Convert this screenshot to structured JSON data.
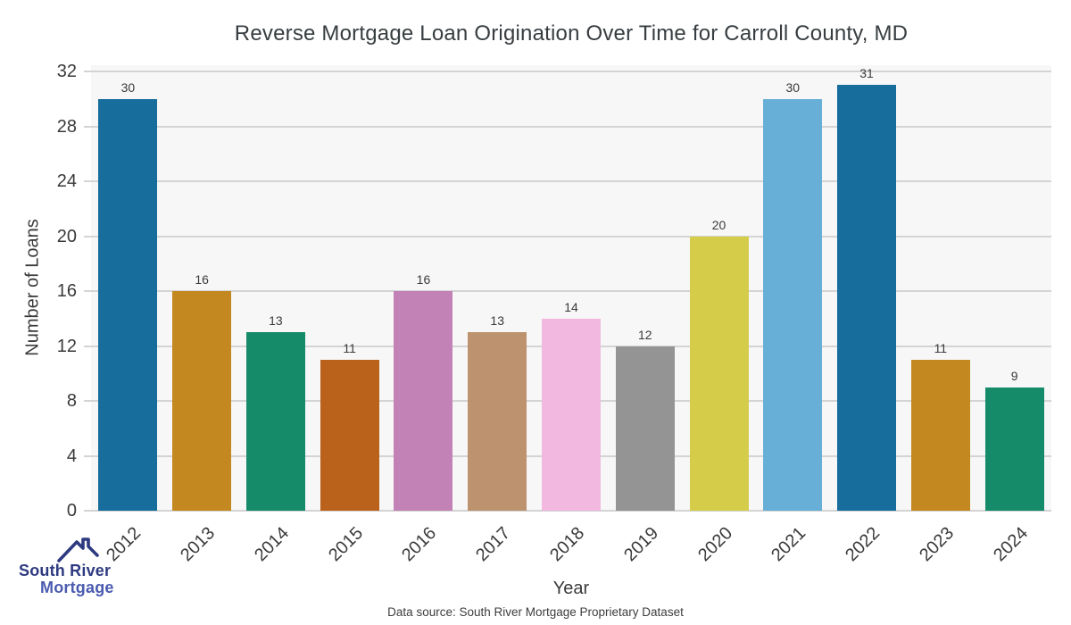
{
  "footer": {
    "source_note": "Data source: South River Mortgage Proprietary Dataset"
  },
  "logo": {
    "name": "South River Mortgage",
    "line1": "South River",
    "line2": "Mortgage",
    "colors": {
      "primary": "#2e3a80",
      "secondary": "#4a5ab0"
    }
  },
  "chart_data": {
    "type": "bar",
    "title": "Reverse Mortgage Loan Origination Over Time for Carroll County, MD",
    "xlabel": "Year",
    "ylabel": "Number of Loans",
    "categories": [
      "2012",
      "2013",
      "2014",
      "2015",
      "2016",
      "2017",
      "2018",
      "2019",
      "2020",
      "2021",
      "2022",
      "2023",
      "2024"
    ],
    "values": [
      30,
      16,
      13,
      11,
      16,
      13,
      14,
      12,
      20,
      30,
      31,
      11,
      9
    ],
    "bar_colors": [
      "#176d9c",
      "#c38820",
      "#168b6a",
      "#ba611b",
      "#c282b5",
      "#bd926e",
      "#f2b8e0",
      "#949494",
      "#d5cd4a",
      "#68afd7",
      "#176d9c",
      "#c38820",
      "#168b6a"
    ],
    "ylim": [
      0,
      32
    ],
    "yticks": [
      0,
      4,
      8,
      12,
      16,
      20,
      24,
      28,
      32
    ],
    "grid": true,
    "legend": "none",
    "value_labels": true,
    "colors": {
      "plot_background": "#f7f7f7",
      "grid": "#d4d4d4",
      "tick_text": "#3a3a3a",
      "title_text": "#373d40",
      "value_text": "#3a3a3a",
      "source_text": "#3d3d3d"
    }
  }
}
